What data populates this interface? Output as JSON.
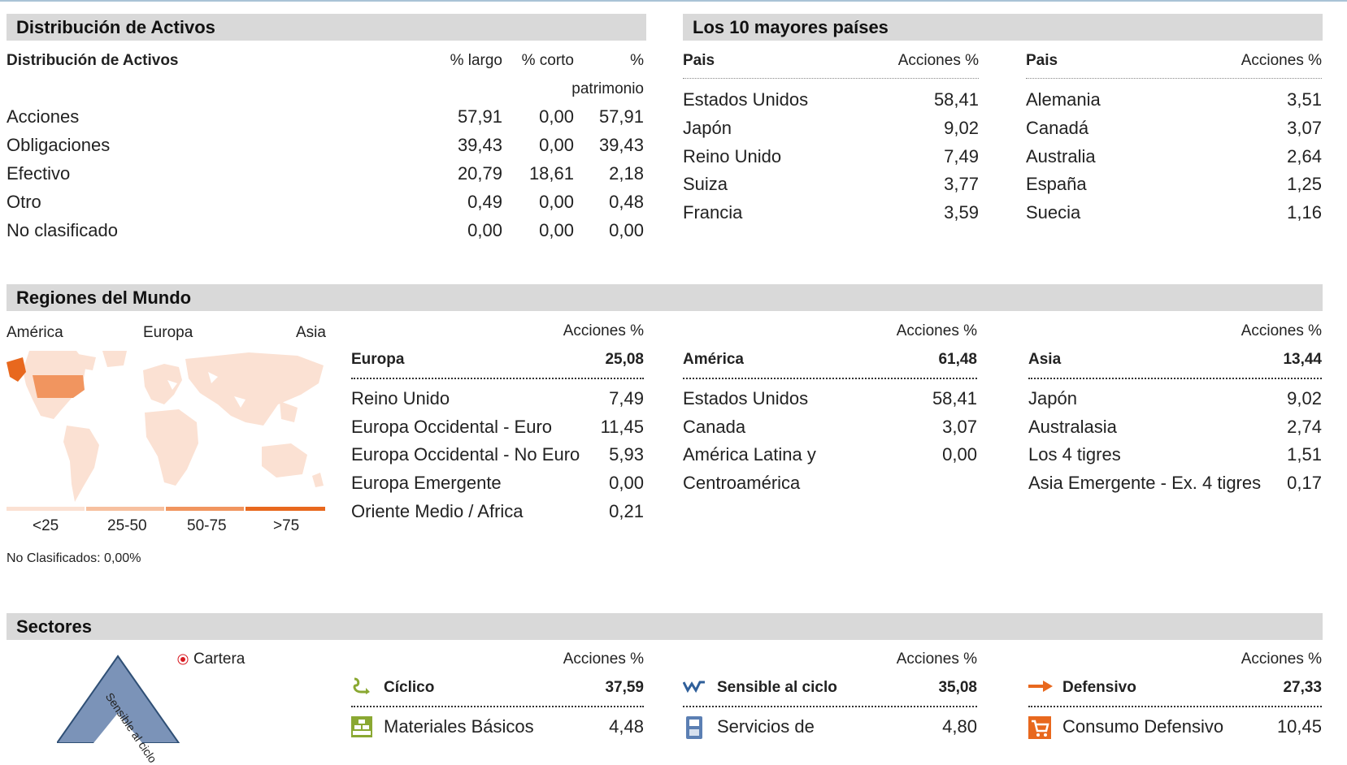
{
  "asset": {
    "section_title": "Distribución de Activos",
    "subtitle": "Distribución de Activos",
    "col_long": "% largo",
    "col_short": "% corto",
    "col_pct": "%",
    "col_pct2": "patrimonio",
    "rows": [
      {
        "label": "Acciones",
        "long": "57,91",
        "short": "0,00",
        "net": "57,91"
      },
      {
        "label": "Obligaciones",
        "long": "39,43",
        "short": "0,00",
        "net": "39,43"
      },
      {
        "label": "Efectivo",
        "long": "20,79",
        "short": "18,61",
        "net": "2,18"
      },
      {
        "label": "Otro",
        "long": "0,49",
        "short": "0,00",
        "net": "0,48"
      },
      {
        "label": "No clasificado",
        "long": "0,00",
        "short": "0,00",
        "net": "0,00"
      }
    ]
  },
  "countries": {
    "section_title": "Los 10 mayores países",
    "col_country": "Pais",
    "col_pct": "Acciones %",
    "left": [
      {
        "name": "Estados Unidos",
        "value": "58,41"
      },
      {
        "name": "Japón",
        "value": "9,02"
      },
      {
        "name": "Reino Unido",
        "value": "7,49"
      },
      {
        "name": "Suiza",
        "value": "3,77"
      },
      {
        "name": "Francia",
        "value": "3,59"
      }
    ],
    "right": [
      {
        "name": "Alemania",
        "value": "3,51"
      },
      {
        "name": "Canadá",
        "value": "3,07"
      },
      {
        "name": "Australia",
        "value": "2,64"
      },
      {
        "name": "España",
        "value": "1,25"
      },
      {
        "name": "Suecia",
        "value": "1,16"
      }
    ]
  },
  "regions": {
    "section_title": "Regiones del Mundo",
    "map_labels": [
      "América",
      "Europa",
      "Asia"
    ],
    "legend": [
      "<25",
      "25-50",
      "50-75",
      ">75"
    ],
    "legend_colors": [
      "#fbe1d3",
      "#f7c09f",
      "#f1955f",
      "#e8681e"
    ],
    "unclassified": "No Clasificados: 0,00%",
    "col_pct": "Acciones %",
    "groups": [
      {
        "name": "Europa",
        "total": "25,08",
        "items": [
          {
            "name": "Reino Unido",
            "value": "7,49"
          },
          {
            "name": "Europa Occidental - Euro",
            "value": "11,45"
          },
          {
            "name": "Europa Occidental - No Euro",
            "value": "5,93"
          },
          {
            "name": "Europa Emergente",
            "value": "0,00"
          },
          {
            "name": "Oriente Medio / Africa",
            "value": "0,21"
          }
        ]
      },
      {
        "name": "América",
        "total": "61,48",
        "items": [
          {
            "name": "Estados Unidos",
            "value": "58,41"
          },
          {
            "name": "Canada",
            "value": "3,07"
          },
          {
            "name": "América Latina y",
            "value": "0,00"
          },
          {
            "name": "Centroamérica",
            "value": ""
          }
        ]
      },
      {
        "name": "Asia",
        "total": "13,44",
        "items": [
          {
            "name": "Japón",
            "value": "9,02"
          },
          {
            "name": "Australasia",
            "value": "2,74"
          },
          {
            "name": "Los 4 tigres",
            "value": "1,51"
          },
          {
            "name": "Asia Emergente - Ex. 4 tigres",
            "value": "0,17"
          }
        ]
      }
    ]
  },
  "sectors": {
    "section_title": "Sectores",
    "triangle_label": "Sensible al ciclo",
    "legend_label": "Cartera",
    "col_pct": "Acciones %",
    "groups": [
      {
        "name": "Cíclico",
        "total": "37,59",
        "icon": "cyclical-icon",
        "first_item": "Materiales Básicos",
        "first_value": "4,48"
      },
      {
        "name": "Sensible al ciclo",
        "total": "35,08",
        "icon": "sensitive-icon",
        "first_item": "Servicios de",
        "first_value": "4,80"
      },
      {
        "name": "Defensivo",
        "total": "27,33",
        "icon": "defensive-icon",
        "first_item": "Consumo Defensivo",
        "first_value": "10,45"
      }
    ]
  }
}
